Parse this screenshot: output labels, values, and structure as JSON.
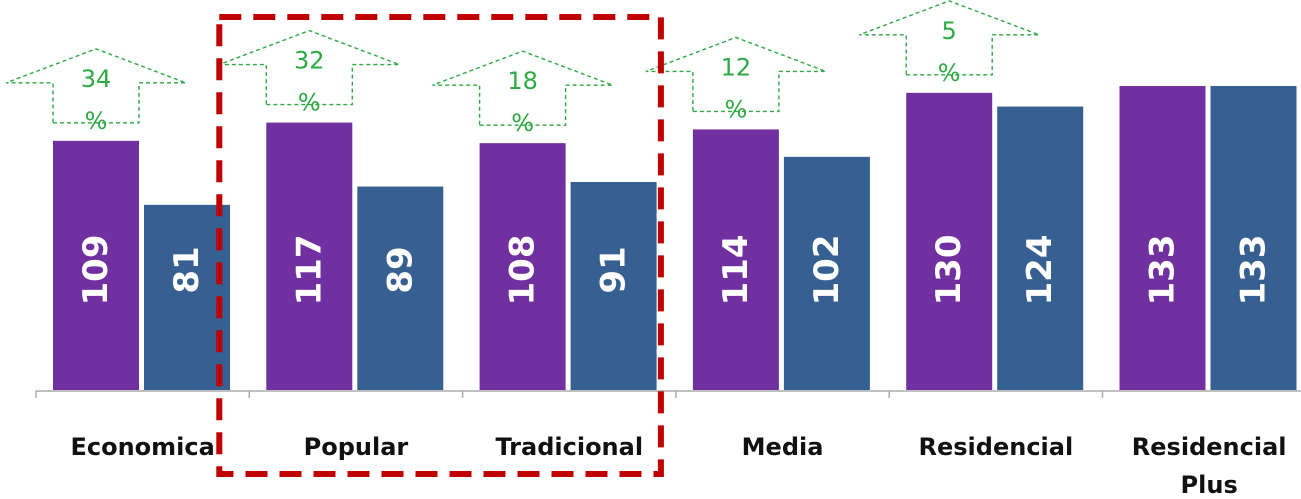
{
  "chart_data": {
    "type": "bar",
    "categories": [
      "Economica",
      "Popular",
      "Tradicional",
      "Media",
      "Residencial",
      "Residencial Plus"
    ],
    "series": [
      {
        "values": [
          109,
          117,
          108,
          114,
          130,
          133
        ]
      },
      {
        "values": [
          81,
          89,
          91,
          102,
          124,
          133
        ]
      }
    ],
    "ylim": [
      0,
      133
    ],
    "grid": false,
    "legend": "none",
    "annotations": [
      {
        "category": "Economica",
        "line1": "34",
        "line2": "%"
      },
      {
        "category": "Popular",
        "line1": "32",
        "line2": "%"
      },
      {
        "category": "Tradicional",
        "line1": "18",
        "line2": "%"
      },
      {
        "category": "Media",
        "line1": "12",
        "line2": "%"
      },
      {
        "category": "Residencial",
        "line1": "5",
        "line2": "%"
      }
    ],
    "highlight": {
      "categories": [
        "Popular",
        "Tradicional"
      ],
      "style": "dashed-box"
    }
  },
  "colors": {
    "series1": "#7030a0",
    "series2": "#376092",
    "annotation": "#2eaa45",
    "highlight": "#c00000",
    "axis": "#aaaaaa"
  }
}
